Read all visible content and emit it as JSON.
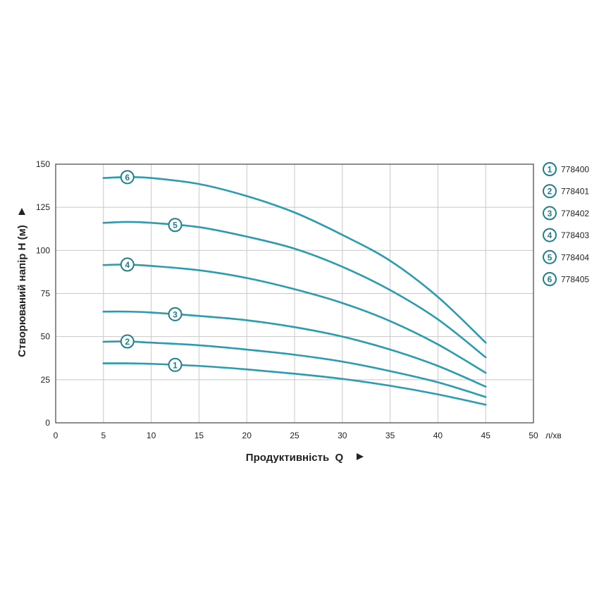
{
  "chart_data": {
    "type": "line",
    "xlabel": "Продуктивність  Q",
    "ylabel": "Створюваний напір H (м)",
    "x_unit": "л/хв",
    "xlim": [
      0,
      50
    ],
    "ylim": [
      0,
      150
    ],
    "x_ticks": [
      "0",
      "5",
      "10",
      "15",
      "20",
      "25",
      "30",
      "35",
      "40",
      "45",
      "50"
    ],
    "y_ticks": [
      "0",
      "25",
      "50",
      "75",
      "100",
      "125",
      "150"
    ],
    "grid": true,
    "legend_position": "right",
    "line_color": "#2a9bb0",
    "marker_color": "#1f7f8a",
    "series": [
      {
        "name": "778400",
        "id": "1",
        "label_at_x": 12.5,
        "x": [
          5,
          7.5,
          10,
          15,
          20,
          25,
          30,
          35,
          40,
          45
        ],
        "y": [
          34.5,
          34.5,
          34.2,
          33,
          31,
          28.5,
          25.5,
          21.5,
          16.5,
          10.5
        ]
      },
      {
        "name": "778401",
        "id": "2",
        "label_at_x": 7.5,
        "x": [
          5,
          7.5,
          10,
          15,
          20,
          25,
          30,
          35,
          40,
          45
        ],
        "y": [
          47,
          47.2,
          46.5,
          45,
          42.5,
          39.5,
          35.5,
          30,
          23.5,
          15
        ]
      },
      {
        "name": "778402",
        "id": "3",
        "label_at_x": 12.5,
        "x": [
          5,
          7.5,
          10,
          15,
          20,
          25,
          30,
          35,
          40,
          45
        ],
        "y": [
          64.5,
          64.5,
          64,
          62,
          59.5,
          55.5,
          50,
          42.5,
          33,
          21
        ]
      },
      {
        "name": "778403",
        "id": "4",
        "label_at_x": 7.5,
        "x": [
          5,
          7.5,
          10,
          15,
          20,
          25,
          30,
          35,
          40,
          45
        ],
        "y": [
          91.5,
          91.8,
          91,
          88.5,
          84,
          77.5,
          69.5,
          59,
          45.5,
          29
        ]
      },
      {
        "name": "778404",
        "id": "5",
        "label_at_x": 12.5,
        "x": [
          5,
          7.5,
          10,
          15,
          20,
          25,
          30,
          35,
          40,
          45
        ],
        "y": [
          116,
          116.5,
          116,
          113.5,
          108,
          101,
          90.5,
          77,
          60,
          38
        ]
      },
      {
        "name": "778405",
        "id": "6",
        "label_at_x": 7.5,
        "x": [
          5,
          7.5,
          10,
          15,
          20,
          25,
          30,
          35,
          40,
          45
        ],
        "y": [
          142,
          142.5,
          142,
          138.5,
          131.5,
          122,
          109,
          94,
          73,
          46.5
        ]
      }
    ]
  }
}
